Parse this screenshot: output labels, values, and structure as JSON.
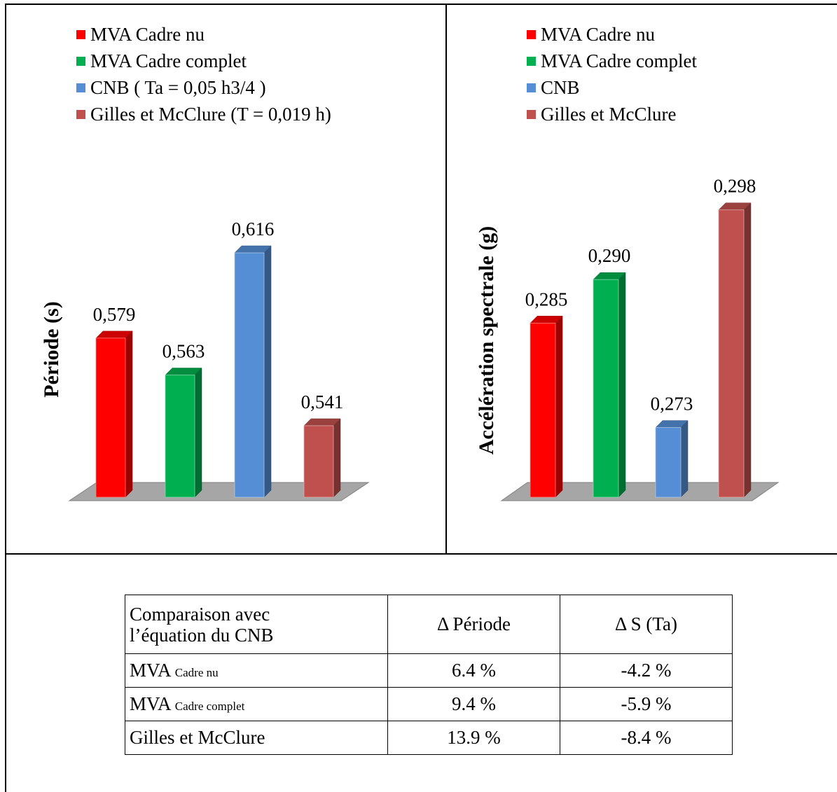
{
  "chart_data": [
    {
      "type": "bar",
      "categories": [
        "MVA Cadre nu",
        "MVA Cadre complet",
        "CNB ( Ta = 0,05 h3/4 )",
        "Gilles et McClure (T = 0,019 h)"
      ],
      "values": [
        0.579,
        0.563,
        0.616,
        0.541
      ],
      "value_labels": [
        "0,579",
        "0,563",
        "0,616",
        "0,541"
      ],
      "ylabel": "Période (s)",
      "colors": [
        "#ff0000",
        "#00b050",
        "#558ed5",
        "#c0504d"
      ],
      "ylim": [
        0.51,
        0.64
      ],
      "legend": "top-left"
    },
    {
      "type": "bar",
      "categories": [
        "MVA Cadre nu",
        "MVA Cadre complet",
        "CNB",
        "Gilles et McClure"
      ],
      "values": [
        0.285,
        0.29,
        0.273,
        0.298
      ],
      "value_labels": [
        "0,285",
        "0,290",
        "0,273",
        "0,298"
      ],
      "ylabel": "Accélération spectrale (g)",
      "colors": [
        "#ff0000",
        "#00b050",
        "#558ed5",
        "#c0504d"
      ],
      "ylim": [
        0.265,
        0.302
      ],
      "legend": "top-left"
    }
  ],
  "table": {
    "header": {
      "col1_line1": "Comparaison avec",
      "col1_line2": "l’équation du CNB",
      "col2": "Δ Période",
      "col3": "Δ S (Ta)"
    },
    "rows": [
      {
        "main": "MVA",
        "sub": "Cadre nu",
        "d_periode": "6.4 %",
        "d_s": "-4.2 %"
      },
      {
        "main": "MVA",
        "sub": "Cadre complet",
        "d_periode": "9.4 %",
        "d_s": "-5.9 %"
      },
      {
        "main": "Gilles et McClure",
        "sub": "",
        "d_periode": "13.9 %",
        "d_s": "-8.4 %"
      }
    ]
  }
}
